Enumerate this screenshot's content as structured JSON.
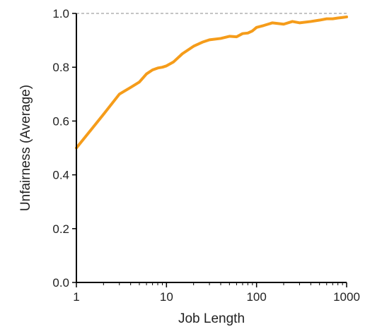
{
  "chart_data": {
    "type": "line",
    "title": "",
    "xlabel": "Job Length",
    "ylabel": "Unfairness (Average)",
    "x_scale": "log",
    "xlim": [
      1,
      1000
    ],
    "ylim": [
      0.0,
      1.0
    ],
    "x_ticks": [
      1,
      10,
      100,
      1000
    ],
    "x_tick_labels": [
      "1",
      "10",
      "100",
      "1000"
    ],
    "y_ticks": [
      0.0,
      0.2,
      0.4,
      0.6,
      0.8,
      1.0
    ],
    "y_tick_labels": [
      "0.0",
      "0.2",
      "0.4",
      "0.6",
      "0.8",
      "1.0"
    ],
    "reference_line": {
      "y": 1.0,
      "style": "dashed",
      "color": "#888888"
    },
    "grid": false,
    "series": [
      {
        "color": "#f59c1a",
        "x": [
          1,
          2,
          3,
          4,
          5,
          6,
          7,
          8,
          9,
          10,
          12,
          15,
          20,
          25,
          30,
          40,
          50,
          60,
          70,
          80,
          90,
          100,
          120,
          150,
          200,
          250,
          300,
          400,
          500,
          600,
          700,
          800,
          900,
          1000
        ],
        "y": [
          0.5,
          0.625,
          0.7,
          0.725,
          0.745,
          0.775,
          0.79,
          0.797,
          0.8,
          0.805,
          0.82,
          0.85,
          0.878,
          0.893,
          0.902,
          0.907,
          0.915,
          0.913,
          0.925,
          0.927,
          0.935,
          0.948,
          0.955,
          0.965,
          0.96,
          0.97,
          0.965,
          0.97,
          0.975,
          0.98,
          0.98,
          0.983,
          0.985,
          0.987
        ]
      }
    ]
  }
}
